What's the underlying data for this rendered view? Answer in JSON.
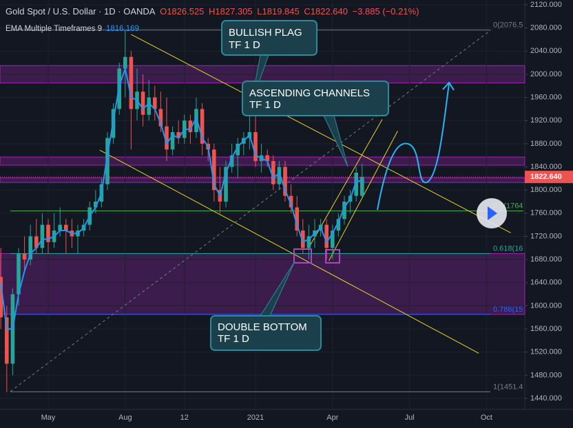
{
  "header": {
    "symbol": "Gold Spot / U.S. Dollar · 1D · OANDA",
    "open": "O1826.525",
    "high": "H1827.305",
    "low": "L1819.845",
    "close": "C1822.640",
    "change": "−3.885 (−0.21%)",
    "indicator": "EMA Multiple Timeframes 9",
    "indicator_value": "1816.169"
  },
  "annotations": [
    {
      "lines": [
        "BULLISH PLAG",
        "TF 1 D"
      ]
    },
    {
      "lines": [
        "ASCENDING CHANNELS",
        "TF 1 D"
      ]
    },
    {
      "lines": [
        "DOUBLE BOTTOM",
        "TF 1 D"
      ]
    }
  ],
  "chart_data": {
    "type": "candlestick",
    "categories": [
      null,
      null,
      null,
      null,
      null,
      null,
      null,
      null,
      "May",
      null,
      null,
      null,
      null,
      null,
      null,
      null,
      null,
      null,
      null,
      null,
      null,
      "Aug",
      null,
      null,
      null,
      null,
      null,
      null,
      null,
      null,
      null,
      "12",
      null,
      null,
      null,
      null,
      null,
      null,
      null,
      null,
      null,
      null,
      null,
      "2021",
      null,
      null,
      null,
      null,
      null,
      null,
      null,
      null,
      null,
      null,
      null,
      null,
      "Apr",
      null,
      null,
      null,
      null,
      null,
      null,
      null,
      null,
      null,
      null,
      null,
      null,
      "Jul",
      null,
      null,
      null,
      null,
      null,
      null,
      null,
      null,
      null,
      null,
      null,
      null,
      "Oct",
      null,
      null
    ],
    "open": [
      1650,
      1580,
      1500,
      1620,
      1690,
      1680,
      1720,
      1700,
      1740,
      1710,
      1730,
      1740,
      1730,
      1720,
      1730,
      1740,
      1770,
      1780,
      1810,
      1890,
      1940,
      2010,
      2030,
      1940,
      1970,
      1930,
      1960,
      1940,
      1910,
      1870,
      1900,
      1890,
      1920,
      1900,
      1940,
      1880,
      1870,
      1800,
      1780,
      1840,
      1860,
      1880,
      1890,
      1900,
      1850,
      1860,
      1850,
      1810,
      1840,
      1790,
      1770,
      1730,
      1700,
      1720,
      1730,
      1740,
      1700,
      1730,
      1750,
      1780,
      1790,
      1790,
      null,
      null,
      null,
      null,
      null,
      null,
      null,
      null,
      null,
      null,
      null,
      null,
      null,
      null,
      null,
      null,
      null,
      null,
      null,
      null,
      null,
      null,
      null
    ],
    "high": [
      1700,
      1600,
      1630,
      1700,
      1720,
      1740,
      1750,
      1760,
      1750,
      1760,
      1770,
      1750,
      1750,
      1740,
      1750,
      1780,
      1800,
      1820,
      1900,
      1950,
      2020,
      2076,
      2040,
      2010,
      2000,
      1990,
      1980,
      1970,
      1960,
      1910,
      1920,
      1930,
      1930,
      1960,
      1950,
      1890,
      1880,
      1840,
      1850,
      1880,
      1890,
      1900,
      1960,
      1950,
      1880,
      1870,
      1860,
      1850,
      1850,
      1810,
      1790,
      1750,
      1740,
      1750,
      1750,
      1750,
      1740,
      1760,
      1790,
      1800,
      1840,
      1845,
      null,
      null,
      null,
      null,
      null,
      null,
      null,
      null,
      null,
      null,
      null,
      null,
      null,
      null,
      null,
      null,
      null,
      null,
      null,
      null,
      null,
      null,
      null
    ],
    "low": [
      1560,
      1451,
      1480,
      1600,
      1660,
      1670,
      1690,
      1690,
      1690,
      1700,
      1720,
      1690,
      1700,
      1690,
      1720,
      1730,
      1760,
      1770,
      1800,
      1880,
      1930,
      1960,
      1870,
      1920,
      1910,
      1920,
      1920,
      1900,
      1850,
      1860,
      1880,
      1880,
      1880,
      1890,
      1860,
      1850,
      1780,
      1760,
      1770,
      1830,
      1820,
      1860,
      1870,
      1840,
      1830,
      1840,
      1800,
      1800,
      1780,
      1760,
      1720,
      1690,
      1680,
      1700,
      1720,
      1680,
      1680,
      1720,
      1740,
      1760,
      1780,
      1785,
      null,
      null,
      null,
      null,
      null,
      null,
      null,
      null,
      null,
      null,
      null,
      null,
      null,
      null,
      null,
      null,
      null,
      null,
      null,
      null,
      null,
      null,
      null
    ],
    "close": [
      1580,
      1500,
      1620,
      1690,
      1680,
      1720,
      1700,
      1740,
      1710,
      1730,
      1740,
      1730,
      1720,
      1730,
      1740,
      1770,
      1780,
      1810,
      1890,
      1940,
      2010,
      2030,
      1940,
      1970,
      1930,
      1960,
      1940,
      1910,
      1870,
      1900,
      1890,
      1920,
      1900,
      1940,
      1880,
      1870,
      1800,
      1780,
      1840,
      1860,
      1880,
      1890,
      1900,
      1850,
      1860,
      1850,
      1810,
      1840,
      1790,
      1770,
      1730,
      1700,
      1720,
      1730,
      1740,
      1700,
      1730,
      1750,
      1780,
      1790,
      1830,
      1822.64,
      null,
      null,
      null,
      null,
      null,
      null,
      null,
      null,
      null,
      null,
      null,
      null,
      null,
      null,
      null,
      null,
      null,
      null,
      null,
      null,
      null,
      null,
      null
    ],
    "close_label": "1822.640",
    "up_color": "#26a69a",
    "down_color": "#ef5350",
    "ema": {
      "color": "#2196f3",
      "values": [
        1640,
        1560,
        1560,
        1620,
        1660,
        1690,
        1700,
        1715,
        1715,
        1720,
        1730,
        1730,
        1725,
        1725,
        1735,
        1755,
        1770,
        1795,
        1860,
        1920,
        1980,
        2010,
        1960,
        1955,
        1940,
        1950,
        1940,
        1915,
        1880,
        1895,
        1890,
        1905,
        1905,
        1925,
        1890,
        1875,
        1810,
        1790,
        1830,
        1855,
        1875,
        1885,
        1895,
        1860,
        1855,
        1850,
        1820,
        1830,
        1800,
        1775,
        1740,
        1710,
        1715,
        1725,
        1735,
        1710,
        1725,
        1745,
        1770,
        1785,
        1815,
        1816.169,
        null,
        null,
        null,
        null,
        null,
        null,
        null,
        null,
        null,
        null,
        null,
        null,
        null,
        null,
        null,
        null,
        null,
        null,
        null,
        null,
        null,
        null,
        null
      ]
    },
    "ylim": [
      1421,
      2128.3
    ],
    "yticks": [
      {
        "value": 1440,
        "label": "1440.000"
      },
      {
        "value": 1480,
        "label": "1480.000"
      },
      {
        "value": 1520,
        "label": "1520.000"
      },
      {
        "value": 1560,
        "label": "1560.000"
      },
      {
        "value": 1600,
        "label": "1600.000"
      },
      {
        "value": 1640,
        "label": "1640.000"
      },
      {
        "value": 1680,
        "label": "1680.000"
      },
      {
        "value": 1720,
        "label": "1720.000"
      },
      {
        "value": 1760,
        "label": "1760.000"
      },
      {
        "value": 1800,
        "label": "1800.000"
      },
      {
        "value": 1840,
        "label": "1840.000"
      },
      {
        "value": 1880,
        "label": "1880.000"
      },
      {
        "value": 1920,
        "label": "1920.000"
      },
      {
        "value": 1960,
        "label": "1960.000"
      },
      {
        "value": 2000,
        "label": "2000.000"
      },
      {
        "value": 2040,
        "label": "2040.000"
      },
      {
        "value": 2080,
        "label": "2080.000"
      },
      {
        "value": 2120,
        "label": "2120.000"
      }
    ],
    "grid": true,
    "zones": [
      {
        "low": 1985,
        "high": 2015
      },
      {
        "low": 1843,
        "high": 1857
      },
      {
        "low": 1813,
        "high": 1821
      },
      {
        "low": 1585.2,
        "high": 1690.2
      }
    ],
    "zone_color": "#9c27b0",
    "fib_levels": [
      {
        "value": 2076.5,
        "label": "0(2076.5"
      },
      {
        "value": 1764,
        "label": "0.5(1764"
      },
      {
        "value": 1690.2,
        "label": "0.618(16"
      },
      {
        "value": 1585.2,
        "label": "0.786(15"
      },
      {
        "value": 1451.4,
        "label": "1(1451.4"
      }
    ],
    "trend_lines": [
      {
        "from": [
          22,
          2068.8
        ],
        "to": [
          86.1,
          1726
        ],
        "color": "#e6d52a"
      },
      {
        "from": [
          16.7,
          1869
        ],
        "to": [
          80.7,
          1518
        ],
        "color": "#e6d52a"
      },
      {
        "from": [
          51.8,
          1697
        ],
        "to": [
          64.4,
          1922
        ],
        "color": "#e6d52a"
      },
      {
        "from": [
          55.4,
          1678
        ],
        "to": [
          67,
          1902
        ],
        "color": "#e6d52a"
      },
      {
        "from": [
          1.6,
          1452
        ],
        "to": [
          82.7,
          2076
        ],
        "color": "#787b86",
        "dashed": true
      }
    ]
  }
}
